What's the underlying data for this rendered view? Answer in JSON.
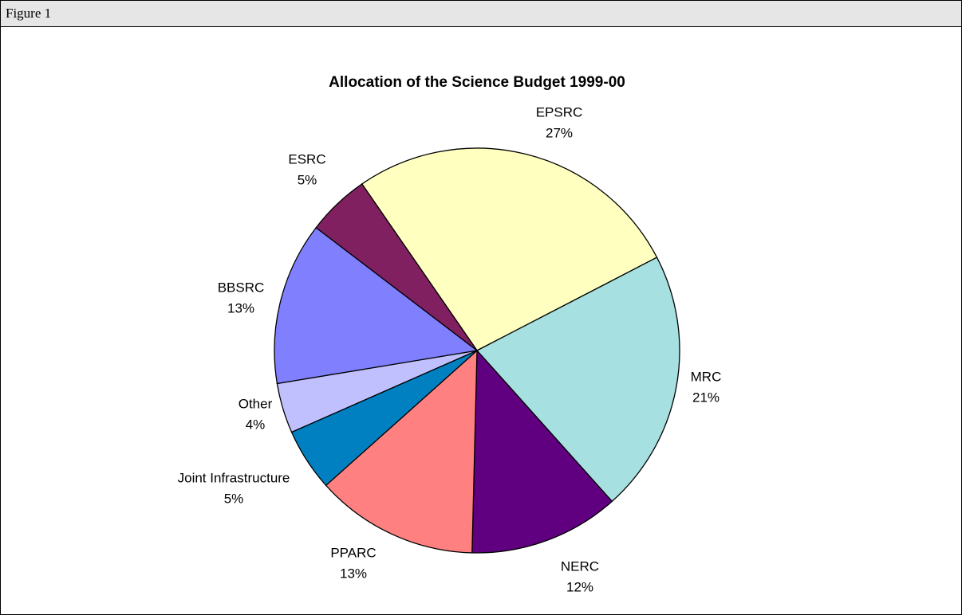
{
  "figure_label": "Figure 1",
  "chart_data": {
    "type": "pie",
    "title": "Allocation of the Science Budget 1999-00",
    "categories": [
      "EPSRC",
      "MRC",
      "NERC",
      "PPARC",
      "Joint Infrastructure",
      "Other",
      "BBSRC",
      "ESRC"
    ],
    "values": [
      27,
      21,
      12,
      13,
      5,
      4,
      13,
      5
    ],
    "value_labels": [
      "27%",
      "21%",
      "12%",
      "13%",
      "5%",
      "4%",
      "13%",
      "5%"
    ],
    "colors": [
      "#ffffc0",
      "#a6e0e0",
      "#600080",
      "#ff8080",
      "#0080c0",
      "#c0c0ff",
      "#8080ff",
      "#802060"
    ]
  }
}
